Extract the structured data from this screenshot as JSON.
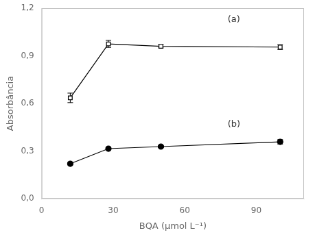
{
  "chart_data": {
    "type": "line",
    "x_label": "BQA (μmol L⁻¹)",
    "y_label": "Absorbância",
    "x": [
      12,
      28,
      50,
      100
    ],
    "series": [
      {
        "values": [
          0.635,
          0.975,
          0.96,
          0.955
        ],
        "yerr": [
          0.03,
          0.022,
          0.01,
          0.015
        ],
        "color": "black",
        "marker": "open_square",
        "line_style": "solid"
      },
      {
        "values": [
          0.22,
          0.315,
          0.328,
          0.358
        ],
        "yerr": [
          0.008,
          0.006,
          0.006,
          0.014
        ],
        "color": "black",
        "marker": "circle",
        "line_style": "solid"
      }
    ],
    "xlim": [
      0,
      110
    ],
    "xticks": [
      0,
      30,
      60,
      90
    ],
    "ylim": [
      0.0,
      1.2
    ],
    "yticks": [
      {
        "value": 0.0,
        "label": "0,0"
      },
      {
        "value": 0.3,
        "label": "0,3"
      },
      {
        "value": 0.6,
        "label": "0,6"
      },
      {
        "value": 0.9,
        "label": "0,9"
      },
      {
        "value": 1.2,
        "label": "1,2"
      }
    ],
    "annotations": [
      {
        "text": "(a)",
        "x": 78,
        "y": 1.1
      },
      {
        "text": "(b)",
        "x": 78,
        "y": 0.44
      }
    ],
    "grid": false
  }
}
